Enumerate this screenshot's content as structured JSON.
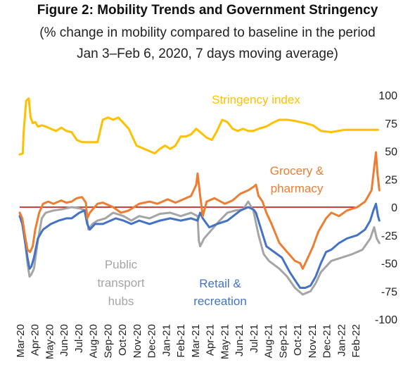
{
  "figure": {
    "title": "Figure 2: Mobility Trends and Government Stringency",
    "subtitle_line1": "(% change in mobility compared to baseline in the period",
    "subtitle_line2": "Jan 3–Feb 6, 2020, 7 days moving average)"
  },
  "chart_data": {
    "type": "line",
    "title": "Figure 2: Mobility Trends and Government Stringency",
    "subtitle": "(% change in mobility compared to baseline in the period Jan 3–Feb 6, 2020, 7 days moving average)",
    "xlabel": "",
    "ylabel": "",
    "ylim": [
      -100,
      100
    ],
    "yticks": [
      -100,
      -75,
      -50,
      -25,
      0,
      25,
      50,
      75,
      100
    ],
    "x_tick_labels": [
      "Mar-20",
      "Apr-20",
      "May-20",
      "Jun-20",
      "Jul-20",
      "Aug-20",
      "Sep-20",
      "Oct-20",
      "Nov-20",
      "Dec-20",
      "Jan-21",
      "Feb-21",
      "Mar-21",
      "Apr-21",
      "May-21",
      "Jun-21",
      "Jul-21",
      "Aug-21",
      "Sep-21",
      "Oct-21",
      "Nov-21",
      "Dec-21",
      "Jan-22",
      "Feb-22"
    ],
    "grid": false,
    "reference_line": {
      "y": 0,
      "color": "#c00000"
    },
    "series": [
      {
        "name": "Stringency index",
        "color": "#ffc000",
        "points": [
          [
            0,
            47
          ],
          [
            0.12,
            48
          ],
          [
            0.15,
            66
          ],
          [
            0.25,
            95
          ],
          [
            0.35,
            97
          ],
          [
            0.42,
            80
          ],
          [
            0.5,
            75
          ],
          [
            0.6,
            76
          ],
          [
            0.7,
            72
          ],
          [
            0.85,
            73
          ],
          [
            1,
            72
          ],
          [
            1.2,
            70
          ],
          [
            1.4,
            68
          ],
          [
            1.6,
            71
          ],
          [
            1.8,
            68
          ],
          [
            2,
            67
          ],
          [
            2.2,
            60
          ],
          [
            2.4,
            58
          ],
          [
            2.6,
            58
          ],
          [
            3,
            58
          ],
          [
            3.2,
            78
          ],
          [
            3.4,
            80
          ],
          [
            3.6,
            78
          ],
          [
            3.8,
            80
          ],
          [
            4,
            75
          ],
          [
            4.2,
            70
          ],
          [
            4.5,
            55
          ],
          [
            5,
            50
          ],
          [
            5.2,
            48
          ],
          [
            5.4,
            52
          ],
          [
            5.6,
            55
          ],
          [
            5.8,
            52
          ],
          [
            6,
            55
          ],
          [
            6.2,
            63
          ],
          [
            6.4,
            63
          ],
          [
            6.6,
            65
          ],
          [
            6.8,
            70
          ],
          [
            7,
            66
          ],
          [
            7.2,
            62
          ],
          [
            7.4,
            60
          ],
          [
            7.6,
            68
          ],
          [
            7.8,
            78
          ],
          [
            8,
            76
          ],
          [
            8.2,
            70
          ],
          [
            8.4,
            68
          ],
          [
            8.6,
            70
          ],
          [
            8.8,
            68
          ],
          [
            9,
            68
          ],
          [
            9.2,
            70
          ],
          [
            9.5,
            72
          ],
          [
            9.8,
            76
          ],
          [
            10,
            78
          ],
          [
            10.3,
            78
          ],
          [
            10.6,
            77
          ],
          [
            11,
            75
          ],
          [
            11.3,
            73
          ],
          [
            11.6,
            68
          ],
          [
            12,
            67
          ],
          [
            12.5,
            69
          ],
          [
            13,
            69
          ],
          [
            13.5,
            69
          ],
          [
            13.8,
            69
          ]
        ]
      },
      {
        "name": "Grocery & pharmacy",
        "color": "#ed7d31",
        "points": [
          [
            0,
            -5
          ],
          [
            0.1,
            -10
          ],
          [
            0.2,
            -25
          ],
          [
            0.3,
            -38
          ],
          [
            0.4,
            -40
          ],
          [
            0.5,
            -35
          ],
          [
            0.6,
            -20
          ],
          [
            0.75,
            -5
          ],
          [
            0.9,
            3
          ],
          [
            1.1,
            5
          ],
          [
            1.3,
            3
          ],
          [
            1.6,
            6
          ],
          [
            1.8,
            4
          ],
          [
            2,
            5
          ],
          [
            2.2,
            8
          ],
          [
            2.4,
            9
          ],
          [
            2.55,
            4
          ],
          [
            2.6,
            -10
          ],
          [
            2.7,
            -5
          ],
          [
            3,
            3
          ],
          [
            3.2,
            4
          ],
          [
            3.4,
            2
          ],
          [
            3.6,
            0
          ],
          [
            3.9,
            -5
          ],
          [
            4.2,
            -3
          ],
          [
            4.4,
            0
          ],
          [
            4.6,
            3
          ],
          [
            5,
            5
          ],
          [
            5.3,
            3
          ],
          [
            5.5,
            5
          ],
          [
            5.7,
            7
          ],
          [
            6,
            4
          ],
          [
            6.2,
            6
          ],
          [
            6.4,
            8
          ],
          [
            6.6,
            10
          ],
          [
            6.8,
            20
          ],
          [
            6.85,
            30
          ],
          [
            6.95,
            10
          ],
          [
            7.05,
            -8
          ],
          [
            7.2,
            5
          ],
          [
            7.5,
            8
          ],
          [
            7.9,
            3
          ],
          [
            8.2,
            6
          ],
          [
            8.5,
            12
          ],
          [
            8.8,
            15
          ],
          [
            9,
            18
          ],
          [
            9.1,
            20
          ],
          [
            9.2,
            10
          ],
          [
            9.35,
            5
          ],
          [
            9.5,
            -5
          ],
          [
            9.7,
            -15
          ],
          [
            10,
            -32
          ],
          [
            10.3,
            -40
          ],
          [
            10.6,
            -48
          ],
          [
            10.8,
            -50
          ],
          [
            10.9,
            -55
          ],
          [
            11.1,
            -45
          ],
          [
            11.3,
            -35
          ],
          [
            11.5,
            -22
          ],
          [
            11.8,
            -10
          ],
          [
            12,
            -5
          ],
          [
            12.3,
            -8
          ],
          [
            12.6,
            -3
          ],
          [
            13,
            0
          ],
          [
            13.3,
            5
          ],
          [
            13.55,
            15
          ],
          [
            13.65,
            35
          ],
          [
            13.72,
            49
          ],
          [
            13.78,
            30
          ],
          [
            13.85,
            15
          ]
        ]
      },
      {
        "name": "Retail & recreation",
        "color": "#4472c4",
        "points": [
          [
            0,
            -8
          ],
          [
            0.1,
            -15
          ],
          [
            0.2,
            -30
          ],
          [
            0.3,
            -45
          ],
          [
            0.38,
            -55
          ],
          [
            0.45,
            -53
          ],
          [
            0.55,
            -45
          ],
          [
            0.7,
            -28
          ],
          [
            0.9,
            -20
          ],
          [
            1.2,
            -15
          ],
          [
            1.5,
            -12
          ],
          [
            1.8,
            -10
          ],
          [
            2,
            -10
          ],
          [
            2.3,
            -5
          ],
          [
            2.5,
            -3
          ],
          [
            2.6,
            -15
          ],
          [
            2.7,
            -20
          ],
          [
            2.9,
            -15
          ],
          [
            3.2,
            -15
          ],
          [
            3.5,
            -12
          ],
          [
            3.7,
            -10
          ],
          [
            4,
            -12
          ],
          [
            4.3,
            -15
          ],
          [
            4.6,
            -12
          ],
          [
            5,
            -15
          ],
          [
            5.4,
            -12
          ],
          [
            5.8,
            -10
          ],
          [
            6.2,
            -12
          ],
          [
            6.6,
            -10
          ],
          [
            6.85,
            -12
          ],
          [
            6.95,
            -5
          ],
          [
            7.05,
            -10
          ],
          [
            7.3,
            -18
          ],
          [
            7.6,
            -15
          ],
          [
            8,
            -12
          ],
          [
            8.5,
            -3
          ],
          [
            8.8,
            0
          ],
          [
            9,
            -2
          ],
          [
            9.1,
            -5
          ],
          [
            9.3,
            -20
          ],
          [
            9.5,
            -35
          ],
          [
            9.8,
            -40
          ],
          [
            10.1,
            -45
          ],
          [
            10.4,
            -58
          ],
          [
            10.6,
            -65
          ],
          [
            10.8,
            -72
          ],
          [
            11,
            -72
          ],
          [
            11.2,
            -70
          ],
          [
            11.4,
            -62
          ],
          [
            11.6,
            -50
          ],
          [
            11.8,
            -40
          ],
          [
            12,
            -38
          ],
          [
            12.3,
            -32
          ],
          [
            12.6,
            -28
          ],
          [
            13,
            -25
          ],
          [
            13.3,
            -20
          ],
          [
            13.5,
            -12
          ],
          [
            13.62,
            -3
          ],
          [
            13.72,
            3
          ],
          [
            13.8,
            -8
          ],
          [
            13.85,
            -12
          ]
        ]
      },
      {
        "name": "Public transport hubs",
        "color": "#a5a5a5",
        "points": [
          [
            0,
            -5
          ],
          [
            0.15,
            -18
          ],
          [
            0.3,
            -50
          ],
          [
            0.38,
            -62
          ],
          [
            0.45,
            -60
          ],
          [
            0.55,
            -55
          ],
          [
            0.7,
            -30
          ],
          [
            0.85,
            -10
          ],
          [
            1,
            -5
          ],
          [
            1.3,
            -3
          ],
          [
            1.6,
            -2
          ],
          [
            2,
            0
          ],
          [
            2.3,
            -1
          ],
          [
            2.55,
            -3
          ],
          [
            2.65,
            -20
          ],
          [
            2.8,
            -15
          ],
          [
            3,
            -12
          ],
          [
            3.3,
            -10
          ],
          [
            3.6,
            -5
          ],
          [
            4,
            -8
          ],
          [
            4.3,
            -12
          ],
          [
            4.6,
            -8
          ],
          [
            5,
            -10
          ],
          [
            5.4,
            -6
          ],
          [
            5.8,
            -5
          ],
          [
            6.2,
            -8
          ],
          [
            6.6,
            -5
          ],
          [
            6.85,
            -8
          ],
          [
            6.9,
            -30
          ],
          [
            6.95,
            -35
          ],
          [
            7.1,
            -28
          ],
          [
            7.4,
            -20
          ],
          [
            7.7,
            -12
          ],
          [
            8,
            -5
          ],
          [
            8.3,
            -3
          ],
          [
            8.6,
            -2
          ],
          [
            8.8,
            5
          ],
          [
            9,
            -3
          ],
          [
            9.2,
            -25
          ],
          [
            9.4,
            -42
          ],
          [
            9.6,
            -48
          ],
          [
            10,
            -55
          ],
          [
            10.3,
            -62
          ],
          [
            10.6,
            -72
          ],
          [
            10.9,
            -78
          ],
          [
            11.2,
            -75
          ],
          [
            11.4,
            -68
          ],
          [
            11.6,
            -58
          ],
          [
            12,
            -48
          ],
          [
            12.4,
            -45
          ],
          [
            12.8,
            -42
          ],
          [
            13.2,
            -38
          ],
          [
            13.5,
            -28
          ],
          [
            13.65,
            -18
          ],
          [
            13.75,
            -28
          ],
          [
            13.85,
            -32
          ]
        ]
      }
    ],
    "annotations": [
      {
        "series": "Stringency index",
        "lines": [
          "Stringency index"
        ],
        "color": "#ffc000"
      },
      {
        "series": "Grocery & pharmacy",
        "lines": [
          "Grocery &",
          "pharmacy"
        ],
        "color": "#ed7d31"
      },
      {
        "series": "Public transport hubs",
        "lines": [
          "Public",
          "transport",
          "hubs"
        ],
        "color": "#a5a5a5"
      },
      {
        "series": "Retail & recreation",
        "lines": [
          "Retail &",
          "recreation"
        ],
        "color": "#4472c4"
      }
    ]
  }
}
